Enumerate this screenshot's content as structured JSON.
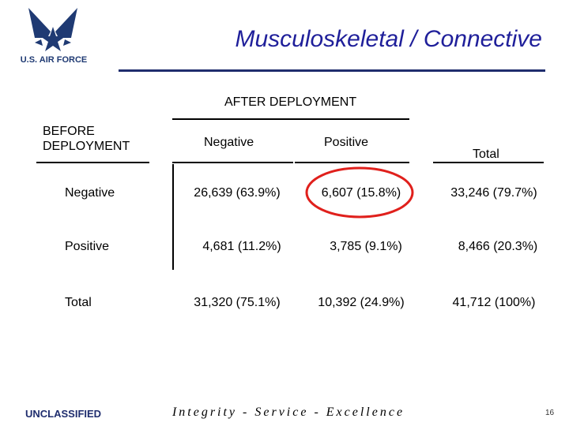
{
  "header": {
    "logo_text": "U.S. AIR FORCE",
    "title": "Musculoskeletal / Connective",
    "rule_color": "#1f2d6e",
    "title_color": "#1f1f9a"
  },
  "table": {
    "column_group_label": "AFTER DEPLOYMENT",
    "row_group_label_line1": "BEFORE",
    "row_group_label_line2": "DEPLOYMENT",
    "column_headers": [
      "Negative",
      "Positive",
      "Total"
    ],
    "rows": [
      {
        "label": "Negative",
        "cells": [
          "26,639 (63.9%)",
          "6,607 (15.8%)",
          "33,246 (79.7%)"
        ]
      },
      {
        "label": "Positive",
        "cells": [
          "4,681 (11.2%)",
          "3,785 (9.1%)",
          "8,466 (20.3%)"
        ]
      },
      {
        "label": "Total",
        "cells": [
          "31,320 (75.1%)",
          "10,392 (24.9%)",
          "41,712 (100%)"
        ]
      }
    ],
    "highlight_color": "#e0201c"
  },
  "footer": {
    "classification": "UNCLASSIFIED",
    "motto": "Integrity - Service - Excellence",
    "page_number": "16"
  }
}
